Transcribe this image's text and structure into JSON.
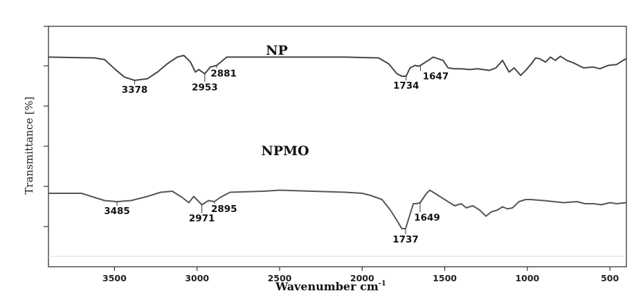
{
  "chart_data": {
    "type": "line",
    "xlabel": "Wavenumber cm",
    "xlabel_sup": "-1",
    "ylabel": "Transmittance [%]",
    "xlim": [
      3900,
      400
    ],
    "x_reversed": true,
    "y_ticks_labeled": false,
    "x_ticks": [
      3500,
      3000,
      2500,
      2000,
      1500,
      1000,
      500
    ],
    "series": [
      {
        "name": "NP",
        "color": "#444444",
        "points": [
          [
            3900,
            98
          ],
          [
            3620,
            97
          ],
          [
            3560,
            95
          ],
          [
            3500,
            84
          ],
          [
            3440,
            74
          ],
          [
            3378,
            70
          ],
          [
            3300,
            72
          ],
          [
            3240,
            80
          ],
          [
            3180,
            90
          ],
          [
            3120,
            98
          ],
          [
            3080,
            100
          ],
          [
            3040,
            92
          ],
          [
            3010,
            80
          ],
          [
            2990,
            83
          ],
          [
            2953,
            78
          ],
          [
            2920,
            86
          ],
          [
            2881,
            88
          ],
          [
            2850,
            93
          ],
          [
            2820,
            98
          ],
          [
            2700,
            98
          ],
          [
            2400,
            98
          ],
          [
            2100,
            98
          ],
          [
            1900,
            97
          ],
          [
            1840,
            90
          ],
          [
            1790,
            78
          ],
          [
            1760,
            75
          ],
          [
            1734,
            75
          ],
          [
            1710,
            85
          ],
          [
            1680,
            88
          ],
          [
            1660,
            87
          ],
          [
            1647,
            88
          ],
          [
            1600,
            94
          ],
          [
            1570,
            98
          ],
          [
            1510,
            94
          ],
          [
            1480,
            85
          ],
          [
            1440,
            84
          ],
          [
            1400,
            84
          ],
          [
            1350,
            83
          ],
          [
            1300,
            84
          ],
          [
            1230,
            82
          ],
          [
            1190,
            85
          ],
          [
            1150,
            94
          ],
          [
            1110,
            80
          ],
          [
            1080,
            85
          ],
          [
            1040,
            76
          ],
          [
            1010,
            82
          ],
          [
            975,
            90
          ],
          [
            950,
            97
          ],
          [
            925,
            96
          ],
          [
            890,
            92
          ],
          [
            860,
            98
          ],
          [
            830,
            94
          ],
          [
            800,
            99
          ],
          [
            760,
            94
          ],
          [
            720,
            91
          ],
          [
            660,
            85
          ],
          [
            600,
            86
          ],
          [
            560,
            84
          ],
          [
            510,
            88
          ],
          [
            460,
            89
          ],
          [
            420,
            94
          ],
          [
            400,
            96
          ]
        ]
      },
      {
        "name": "NPMO",
        "color": "#555555",
        "points": [
          [
            3900,
            44
          ],
          [
            3700,
            44
          ],
          [
            3620,
            40
          ],
          [
            3560,
            37
          ],
          [
            3485,
            36
          ],
          [
            3400,
            37
          ],
          [
            3300,
            41
          ],
          [
            3220,
            45
          ],
          [
            3150,
            46
          ],
          [
            3090,
            40
          ],
          [
            3050,
            35
          ],
          [
            3020,
            41
          ],
          [
            2971,
            33
          ],
          [
            2930,
            37
          ],
          [
            2895,
            36
          ],
          [
            2860,
            40
          ],
          [
            2800,
            45
          ],
          [
            2600,
            46
          ],
          [
            2500,
            47
          ],
          [
            2300,
            46
          ],
          [
            2100,
            45
          ],
          [
            2000,
            44
          ],
          [
            1950,
            42
          ],
          [
            1880,
            38
          ],
          [
            1830,
            28
          ],
          [
            1790,
            18
          ],
          [
            1760,
            10
          ],
          [
            1737,
            10
          ],
          [
            1710,
            24
          ],
          [
            1690,
            34
          ],
          [
            1670,
            34
          ],
          [
            1649,
            35
          ],
          [
            1610,
            44
          ],
          [
            1590,
            47
          ],
          [
            1540,
            42
          ],
          [
            1470,
            35
          ],
          [
            1440,
            32
          ],
          [
            1400,
            34
          ],
          [
            1370,
            30
          ],
          [
            1330,
            32
          ],
          [
            1290,
            28
          ],
          [
            1250,
            22
          ],
          [
            1220,
            26
          ],
          [
            1180,
            28
          ],
          [
            1150,
            31
          ],
          [
            1120,
            29
          ],
          [
            1090,
            30
          ],
          [
            1050,
            36
          ],
          [
            1010,
            38
          ],
          [
            980,
            38
          ],
          [
            900,
            37
          ],
          [
            840,
            36
          ],
          [
            780,
            35
          ],
          [
            700,
            36
          ],
          [
            650,
            34
          ],
          [
            600,
            34
          ],
          [
            550,
            33
          ],
          [
            500,
            35
          ],
          [
            460,
            34
          ],
          [
            400,
            35
          ]
        ]
      }
    ],
    "annotations": [
      {
        "series": "NP",
        "x": 3378,
        "y": 70,
        "label": "3378",
        "side": "below"
      },
      {
        "series": "NP",
        "x": 2953,
        "y": 78,
        "label": "2953",
        "side": "below"
      },
      {
        "series": "NP",
        "x": 2881,
        "y": 88,
        "label": "2881",
        "side": "below"
      },
      {
        "series": "NP",
        "x": 1734,
        "y": 75,
        "label": "1734",
        "side": "below"
      },
      {
        "series": "NP",
        "x": 1647,
        "y": 88,
        "label": "1647",
        "side": "below"
      },
      {
        "series": "NPMO",
        "x": 3485,
        "y": 36,
        "label": "3485",
        "side": "below"
      },
      {
        "series": "NPMO",
        "x": 2971,
        "y": 33,
        "label": "2971",
        "side": "below"
      },
      {
        "series": "NPMO",
        "x": 2895,
        "y": 36,
        "label": "2895",
        "side": "below"
      },
      {
        "series": "NPMO",
        "x": 1737,
        "y": 10,
        "label": "1737",
        "side": "below"
      },
      {
        "series": "NPMO",
        "x": 1649,
        "y": 35,
        "label": "1649",
        "side": "below"
      }
    ]
  }
}
